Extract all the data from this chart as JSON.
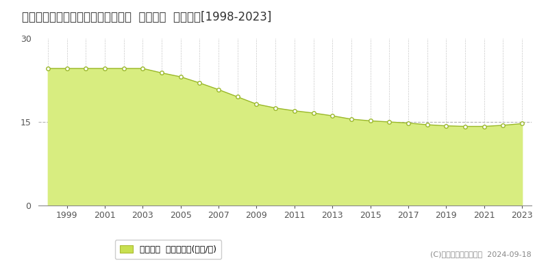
{
  "title": "青森県八戸市高州２丁目５３番５外  公示地価  地価推移[1998-2023]",
  "years": [
    1998,
    1999,
    2000,
    2001,
    2002,
    2003,
    2004,
    2005,
    2006,
    2007,
    2008,
    2009,
    2010,
    2011,
    2012,
    2013,
    2014,
    2015,
    2016,
    2017,
    2018,
    2019,
    2020,
    2021,
    2022,
    2023
  ],
  "values": [
    24.6,
    24.6,
    24.6,
    24.6,
    24.6,
    24.6,
    23.8,
    23.1,
    22.0,
    20.8,
    19.5,
    18.2,
    17.5,
    17.0,
    16.6,
    16.1,
    15.5,
    15.2,
    15.0,
    14.8,
    14.5,
    14.3,
    14.2,
    14.2,
    14.4,
    14.7
  ],
  "fill_color": "#d8ed80",
  "line_color": "#9ab82a",
  "marker_facecolor": "#ffffff",
  "marker_edgecolor": "#9ab82a",
  "background_color": "#ffffff",
  "plot_bg_color": "#f5f5f5",
  "grid_color": "#bbbbbb",
  "hline_color": "#aaaaaa",
  "ylim": [
    0,
    30
  ],
  "yticks": [
    0,
    15,
    30
  ],
  "xlim_left": 1997.5,
  "xlim_right": 2023.5,
  "xtick_positions": [
    1999,
    2001,
    2003,
    2005,
    2007,
    2009,
    2011,
    2013,
    2015,
    2017,
    2019,
    2021,
    2023
  ],
  "xtick_labels": [
    "1999",
    "2001",
    "2003",
    "2005",
    "2007",
    "2009",
    "2011",
    "2013",
    "2015",
    "2017",
    "2019",
    "2021",
    "2023"
  ],
  "vgrid_years": [
    1998,
    1999,
    2000,
    2001,
    2002,
    2003,
    2004,
    2005,
    2006,
    2007,
    2008,
    2009,
    2010,
    2011,
    2012,
    2013,
    2014,
    2015,
    2016,
    2017,
    2018,
    2019,
    2020,
    2021,
    2022,
    2023
  ],
  "legend_label": "公示地価  平均坪単価(万円/坪)",
  "legend_color": "#c8e050",
  "copyright_text": "(C)土地価格ドットコム  2024-09-18",
  "title_fontsize": 12,
  "axis_fontsize": 9,
  "legend_fontsize": 9,
  "copyright_fontsize": 8
}
